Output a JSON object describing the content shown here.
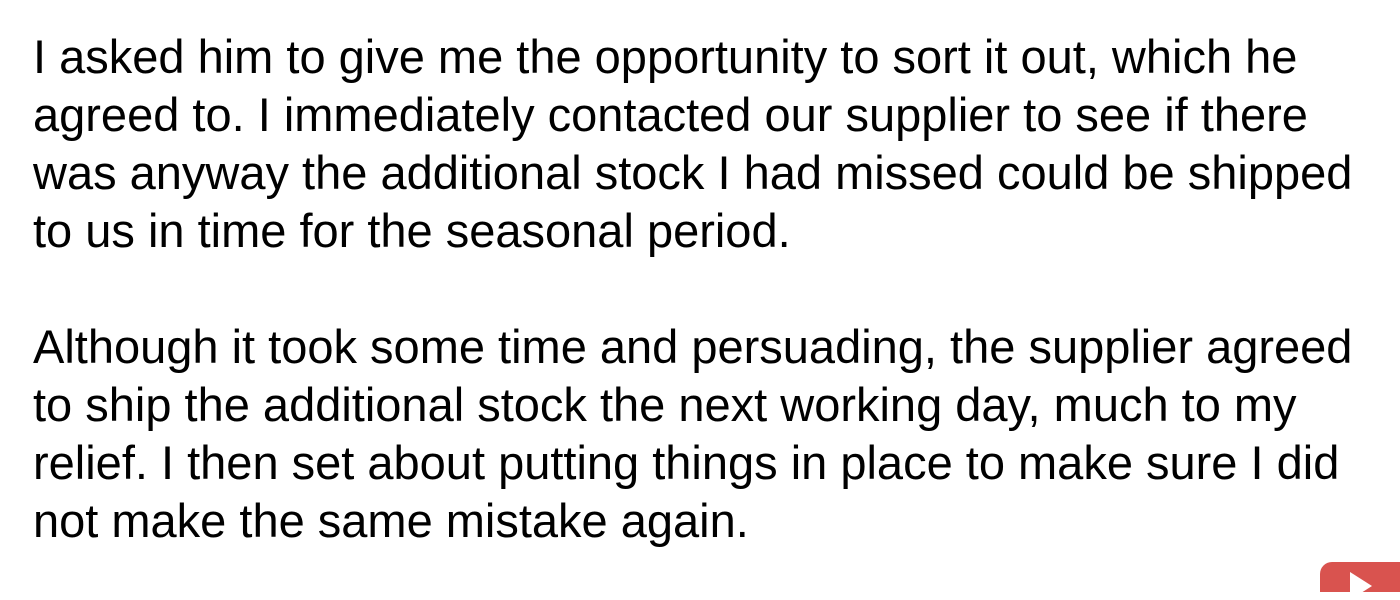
{
  "document": {
    "paragraphs": [
      {
        "lines": [
          "I asked him to give me the opportunity to sort it out, which he",
          "agreed to. I immediately contacted our supplier to see if there",
          "was anyway the additional stock I had missed could be shipped",
          "to us in time for the seasonal period."
        ]
      },
      {
        "lines": [
          "Although it took some time and persuading, the supplier agreed",
          "to ship the additional stock the next working day, much to my",
          "relief. I then set about putting things in place to make sure I did",
          "not make the same mistake again."
        ]
      }
    ]
  },
  "controls": {
    "play_icon": "play-icon",
    "play_button_color": "#d9534f"
  }
}
